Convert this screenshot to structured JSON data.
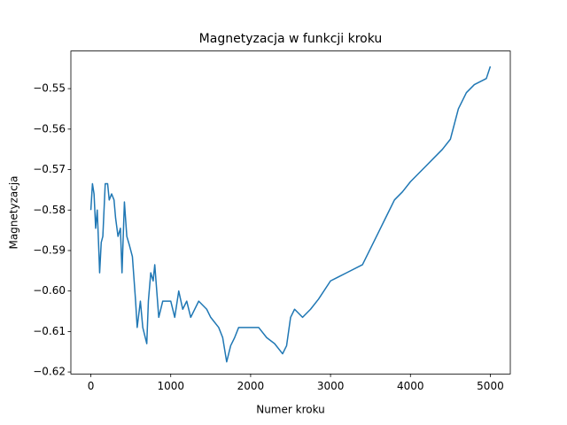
{
  "chart_data": {
    "type": "line",
    "title": "Magnetyzacja w funkcji kroku",
    "x_label": "Numer kroku",
    "y_label": "Magnetyzacja",
    "x": [
      0,
      20,
      40,
      60,
      80,
      100,
      110,
      130,
      150,
      180,
      210,
      230,
      260,
      290,
      310,
      340,
      370,
      390,
      420,
      450,
      480,
      520,
      560,
      580,
      620,
      650,
      700,
      720,
      750,
      780,
      800,
      850,
      900,
      1000,
      1050,
      1100,
      1150,
      1200,
      1250,
      1350,
      1450,
      1500,
      1600,
      1650,
      1700,
      1750,
      1800,
      1850,
      2000,
      2100,
      2200,
      2300,
      2400,
      2450,
      2500,
      2550,
      2650,
      2750,
      2850,
      3000,
      3200,
      3400,
      3500,
      3600,
      3700,
      3800,
      3900,
      4000,
      4100,
      4200,
      4300,
      4400,
      4500,
      4600,
      4700,
      4800,
      4950,
      5000
    ],
    "series": [
      {
        "name": "Magnetyzacja",
        "color": "#1f77b4",
        "values": [
          -0.58,
          -0.5735,
          -0.576,
          -0.5845,
          -0.58,
          -0.59,
          -0.5955,
          -0.588,
          -0.5865,
          -0.5735,
          -0.5735,
          -0.5775,
          -0.576,
          -0.5775,
          -0.582,
          -0.5865,
          -0.5845,
          -0.5955,
          -0.578,
          -0.5865,
          -0.5885,
          -0.5915,
          -0.6025,
          -0.609,
          -0.6025,
          -0.609,
          -0.613,
          -0.6025,
          -0.5955,
          -0.5975,
          -0.5935,
          -0.6065,
          -0.6025,
          -0.6025,
          -0.6065,
          -0.6,
          -0.6045,
          -0.6025,
          -0.6065,
          -0.6025,
          -0.6045,
          -0.6065,
          -0.609,
          -0.6115,
          -0.6175,
          -0.6135,
          -0.6115,
          -0.609,
          -0.609,
          -0.609,
          -0.6115,
          -0.613,
          -0.6155,
          -0.6135,
          -0.6065,
          -0.6045,
          -0.6065,
          -0.6045,
          -0.602,
          -0.5975,
          -0.5955,
          -0.5935,
          -0.5895,
          -0.5855,
          -0.5815,
          -0.5775,
          -0.5755,
          -0.573,
          -0.571,
          -0.569,
          -0.567,
          -0.565,
          -0.5625,
          -0.555,
          -0.551,
          -0.549,
          -0.5475,
          -0.5445
        ]
      }
    ],
    "xlim": [
      -250,
      5250
    ],
    "ylim": [
      -0.6205,
      -0.5407
    ],
    "xticks": [
      0,
      1000,
      2000,
      3000,
      4000,
      5000
    ],
    "yticks": [
      {
        "value": -0.62,
        "label": "−0.62"
      },
      {
        "value": -0.61,
        "label": "−0.61"
      },
      {
        "value": -0.6,
        "label": "−0.60"
      },
      {
        "value": -0.59,
        "label": "−0.59"
      },
      {
        "value": -0.58,
        "label": "−0.58"
      },
      {
        "value": -0.57,
        "label": "−0.57"
      },
      {
        "value": -0.56,
        "label": "−0.56"
      },
      {
        "value": -0.55,
        "label": "−0.55"
      }
    ]
  }
}
